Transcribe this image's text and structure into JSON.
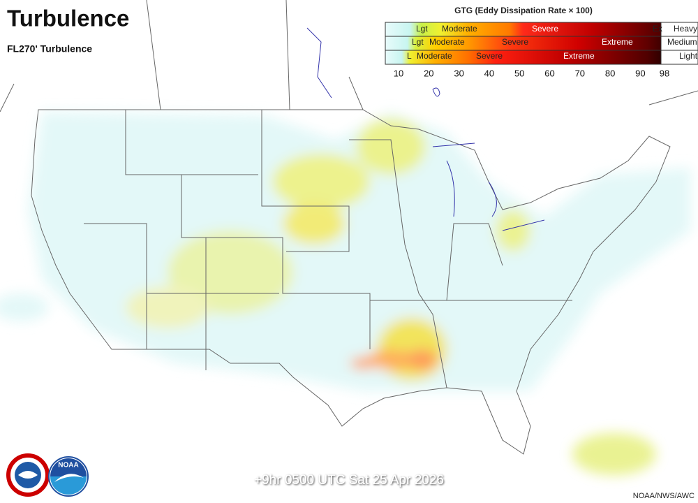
{
  "header": {
    "title": "Turbulence",
    "subtitle": "FL270' Turbulence"
  },
  "legend": {
    "title": "GTG (Eddy Dissipation Rate × 100)",
    "rows": [
      {
        "labels": [
          "Lgt",
          "Moderate",
          "Severe",
          "Ex"
        ],
        "intensity": "Heavy"
      },
      {
        "labels": [
          "Lgt",
          "Moderate",
          "Severe",
          "Extreme"
        ],
        "intensity": "Medium"
      },
      {
        "labels": [
          "L",
          "Moderate",
          "Severe",
          "Extreme"
        ],
        "intensity": "Light"
      }
    ],
    "ticks": [
      10,
      20,
      30,
      40,
      50,
      60,
      70,
      80,
      90,
      98
    ]
  },
  "footer": {
    "valid_time": "+9hr 0500 UTC Sat 25 Apr 2026",
    "credit": "NOAA/NWS/AWC"
  },
  "logos": {
    "noaa": "NOAA"
  }
}
